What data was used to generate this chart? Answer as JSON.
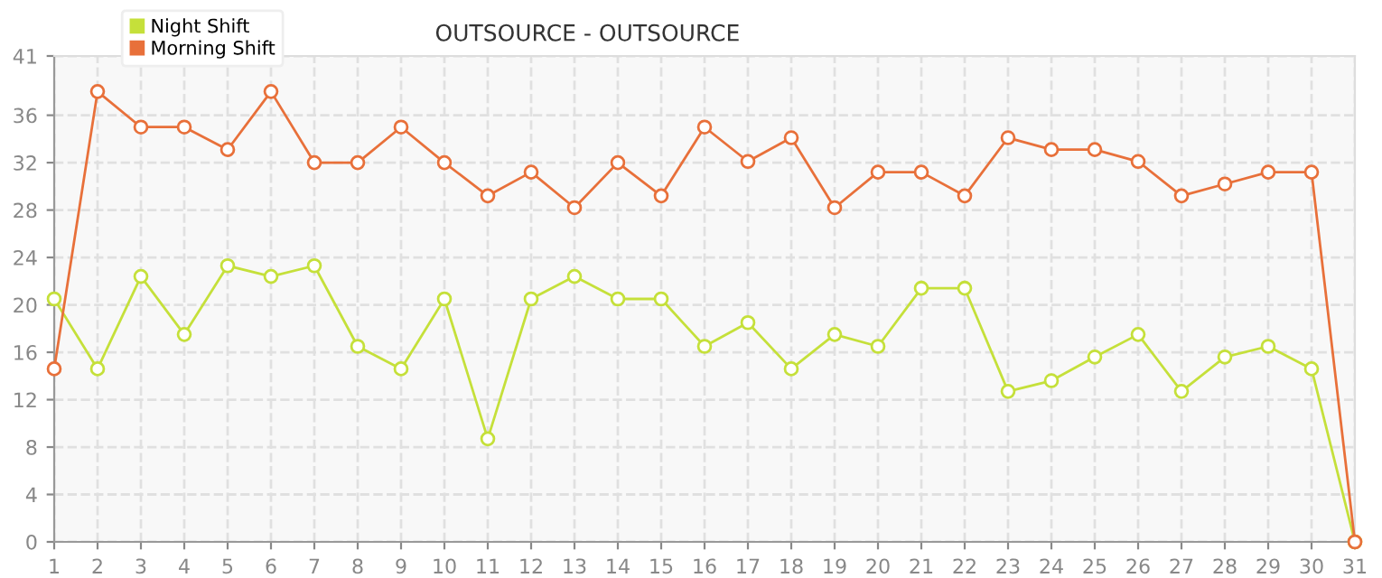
{
  "chart_data": {
    "type": "line",
    "title": "OUTSOURCE - OUTSOURCE",
    "categories": [
      "1",
      "2",
      "3",
      "4",
      "5",
      "6",
      "7",
      "8",
      "9",
      "10",
      "11",
      "12",
      "13",
      "14",
      "15",
      "16",
      "17",
      "18",
      "19",
      "20",
      "21",
      "22",
      "23",
      "24",
      "25",
      "26",
      "27",
      "28",
      "29",
      "30",
      "31"
    ],
    "series": [
      {
        "name": "Night Shift",
        "color": "#c5e03a",
        "values": [
          20.5,
          14.6,
          22.4,
          17.5,
          23.3,
          22.4,
          23.3,
          16.5,
          14.6,
          20.5,
          8.7,
          20.5,
          22.4,
          20.5,
          20.5,
          16.5,
          18.5,
          14.6,
          17.5,
          16.5,
          21.4,
          21.4,
          12.7,
          13.6,
          15.6,
          17.5,
          12.7,
          15.6,
          16.5,
          14.6,
          0
        ]
      },
      {
        "name": "Morning Shift",
        "color": "#e8703a",
        "values": [
          14.6,
          38,
          35,
          35,
          33.1,
          38,
          32,
          32,
          35,
          32,
          29.2,
          31.2,
          28.2,
          32,
          29.2,
          35,
          32.1,
          34.1,
          28.2,
          31.2,
          31.2,
          29.2,
          34.1,
          33.1,
          33.1,
          32.1,
          29.2,
          30.2,
          31.2,
          31.2,
          0
        ]
      }
    ],
    "ylim": [
      0,
      41
    ],
    "yticks": [
      0,
      4,
      8,
      12,
      16,
      20,
      24,
      28,
      32,
      36,
      41
    ],
    "grid": true,
    "legend": "top left",
    "marker": "circle",
    "line_style": "solid"
  }
}
